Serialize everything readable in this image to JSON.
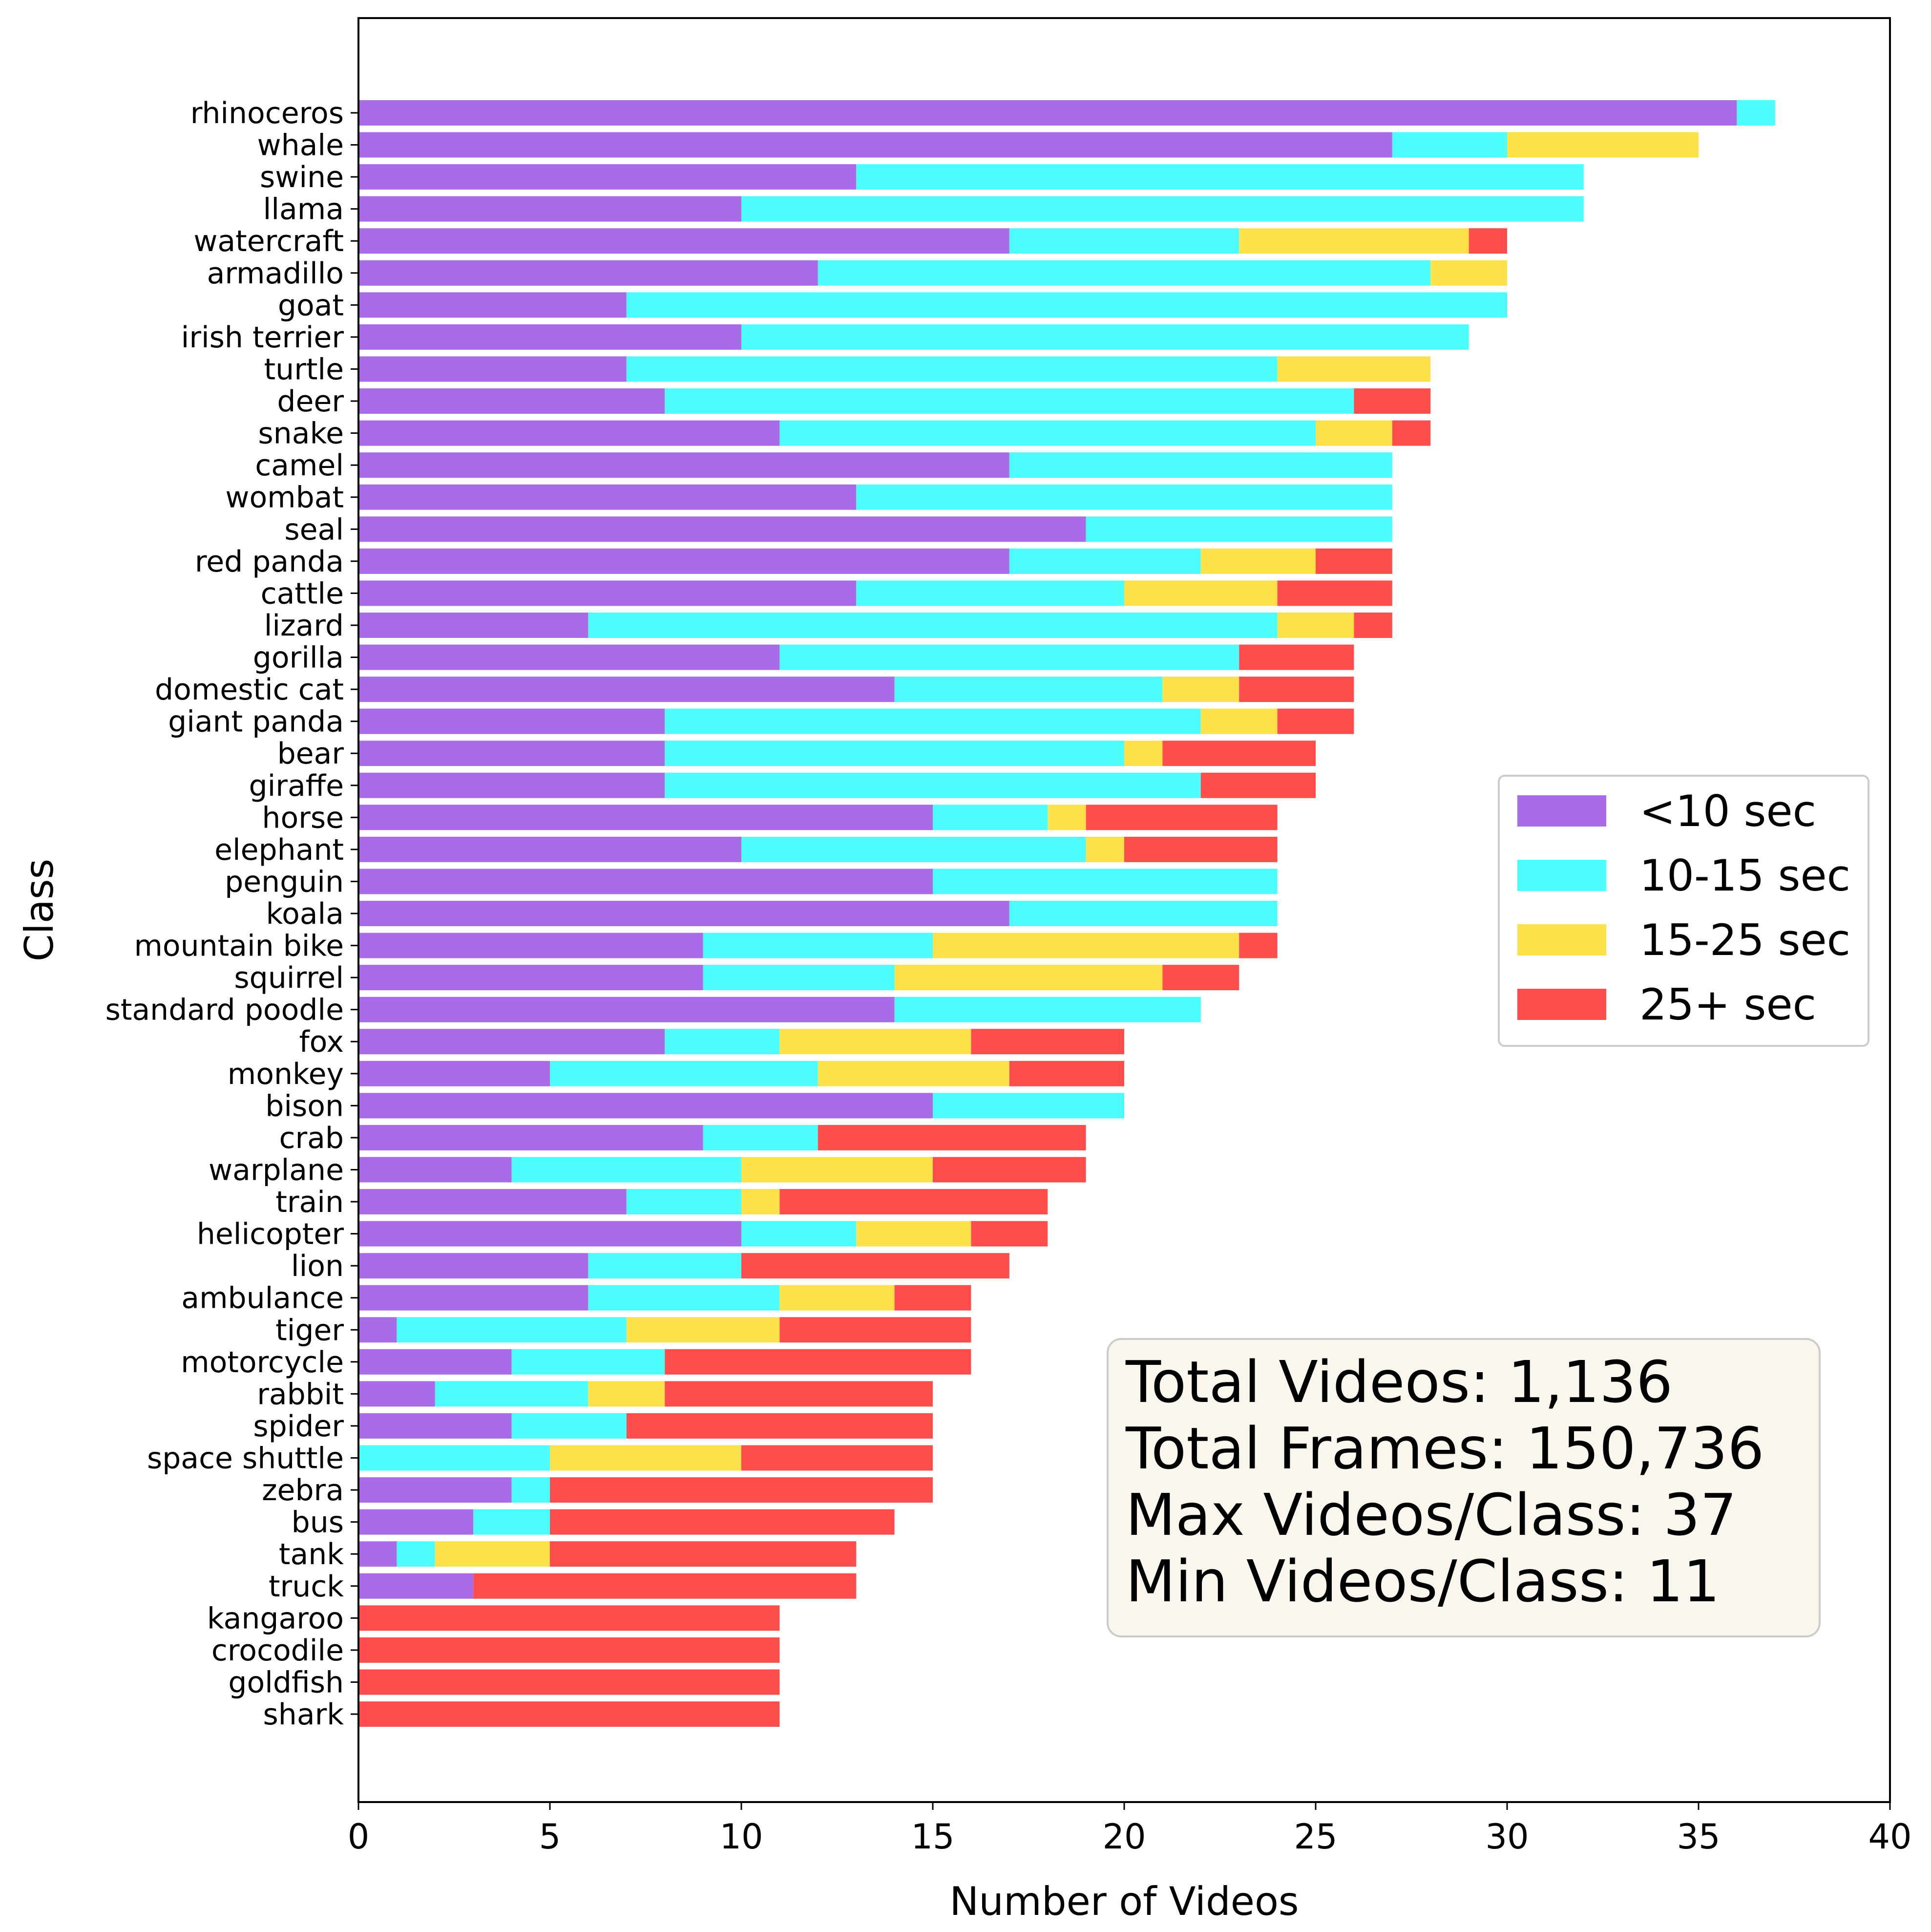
{
  "chart_data": {
    "type": "bar",
    "orientation": "horizontal",
    "stacked": true,
    "xlabel": "Number of Videos",
    "ylabel": "Class",
    "xlim": [
      0,
      40
    ],
    "xticks": [
      "0",
      "5",
      "10",
      "15",
      "20",
      "25",
      "30",
      "35",
      "40"
    ],
    "grid": false,
    "legend_position": "center-right",
    "categories": [
      "rhinoceros",
      "whale",
      "swine",
      "llama",
      "watercraft",
      "armadillo",
      "goat",
      "irish terrier",
      "turtle",
      "deer",
      "snake",
      "camel",
      "wombat",
      "seal",
      "red panda",
      "cattle",
      "lizard",
      "gorilla",
      "domestic cat",
      "giant panda",
      "bear",
      "giraffe",
      "horse",
      "elephant",
      "penguin",
      "koala",
      "mountain bike",
      "squirrel",
      "standard poodle",
      "fox",
      "monkey",
      "bison",
      "crab",
      "warplane",
      "train",
      "helicopter",
      "lion",
      "ambulance",
      "tiger",
      "motorcycle",
      "rabbit",
      "spider",
      "space shuttle",
      "zebra",
      "bus",
      "tank",
      "truck",
      "kangaroo",
      "crocodile",
      "goldfish",
      "shark"
    ],
    "series": [
      {
        "name": "<10 sec",
        "color": "#a96be8",
        "values": [
          36,
          27,
          13,
          10,
          17,
          12,
          7,
          10,
          7,
          8,
          11,
          17,
          13,
          19,
          17,
          13,
          6,
          11,
          14,
          8,
          8,
          8,
          15,
          10,
          15,
          17,
          9,
          9,
          14,
          8,
          5,
          15,
          9,
          4,
          7,
          10,
          6,
          6,
          1,
          4,
          2,
          4,
          0,
          4,
          3,
          1,
          3,
          0,
          0,
          0,
          0
        ]
      },
      {
        "name": "10-15 sec",
        "color": "#4dfdfd",
        "values": [
          1,
          3,
          19,
          22,
          6,
          16,
          23,
          19,
          17,
          18,
          14,
          10,
          14,
          8,
          5,
          7,
          18,
          12,
          7,
          14,
          12,
          14,
          3,
          9,
          9,
          7,
          6,
          5,
          8,
          3,
          7,
          5,
          3,
          6,
          3,
          3,
          4,
          5,
          6,
          4,
          4,
          3,
          5,
          1,
          2,
          1,
          0,
          0,
          0,
          0,
          0
        ]
      },
      {
        "name": "15-25 sec",
        "color": "#fde14b",
        "values": [
          0,
          5,
          0,
          0,
          6,
          2,
          0,
          0,
          4,
          0,
          2,
          0,
          0,
          0,
          3,
          4,
          2,
          0,
          2,
          2,
          1,
          0,
          1,
          1,
          0,
          0,
          8,
          7,
          0,
          5,
          5,
          0,
          0,
          5,
          1,
          3,
          0,
          3,
          4,
          0,
          2,
          0,
          5,
          0,
          0,
          3,
          0,
          0,
          0,
          0,
          0
        ]
      },
      {
        "name": "25+ sec",
        "color": "#fd4d4d",
        "values": [
          0,
          0,
          0,
          0,
          1,
          0,
          0,
          0,
          0,
          2,
          1,
          0,
          0,
          0,
          2,
          3,
          1,
          3,
          3,
          2,
          4,
          3,
          5,
          4,
          0,
          0,
          1,
          2,
          0,
          4,
          3,
          0,
          7,
          4,
          7,
          2,
          7,
          2,
          5,
          8,
          7,
          8,
          5,
          10,
          9,
          8,
          10,
          11,
          11,
          11,
          11
        ]
      }
    ],
    "annotation": {
      "lines": [
        "Total Videos: 1,136",
        "Total Frames: 150,736",
        "Max Videos/Class: 37",
        "Min Videos/Class: 11"
      ],
      "background": "#faf6ee"
    }
  }
}
